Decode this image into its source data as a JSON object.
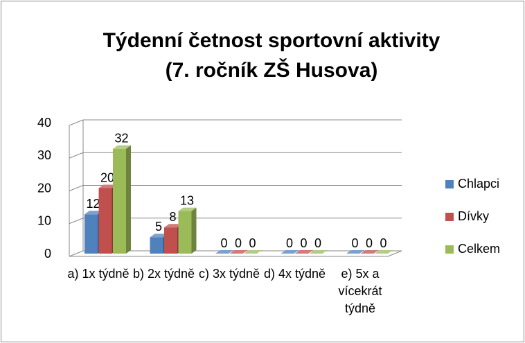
{
  "chart_data": {
    "type": "bar3d",
    "title": "Týdenní četnost sportovní aktivity",
    "subtitle": "(7. ročník ZŠ Husova)",
    "categories": [
      "a) 1x týdně",
      "b) 2x týdně",
      "c) 3x týdně",
      "d) 4x týdně",
      "e) 5x a vícekrát týdně"
    ],
    "series": [
      {
        "name": "Chlapci",
        "color": "#4f81bd",
        "values": [
          12,
          5,
          0,
          0,
          0
        ]
      },
      {
        "name": "Dívky",
        "color": "#c0504d",
        "values": [
          20,
          8,
          0,
          0,
          0
        ]
      },
      {
        "name": "Celkem",
        "color": "#9bbb59",
        "values": [
          32,
          13,
          0,
          0,
          0
        ]
      }
    ],
    "ylim": [
      0,
      40
    ],
    "yticks": [
      0,
      10,
      20,
      30,
      40
    ],
    "grid": true,
    "legend": "right"
  }
}
